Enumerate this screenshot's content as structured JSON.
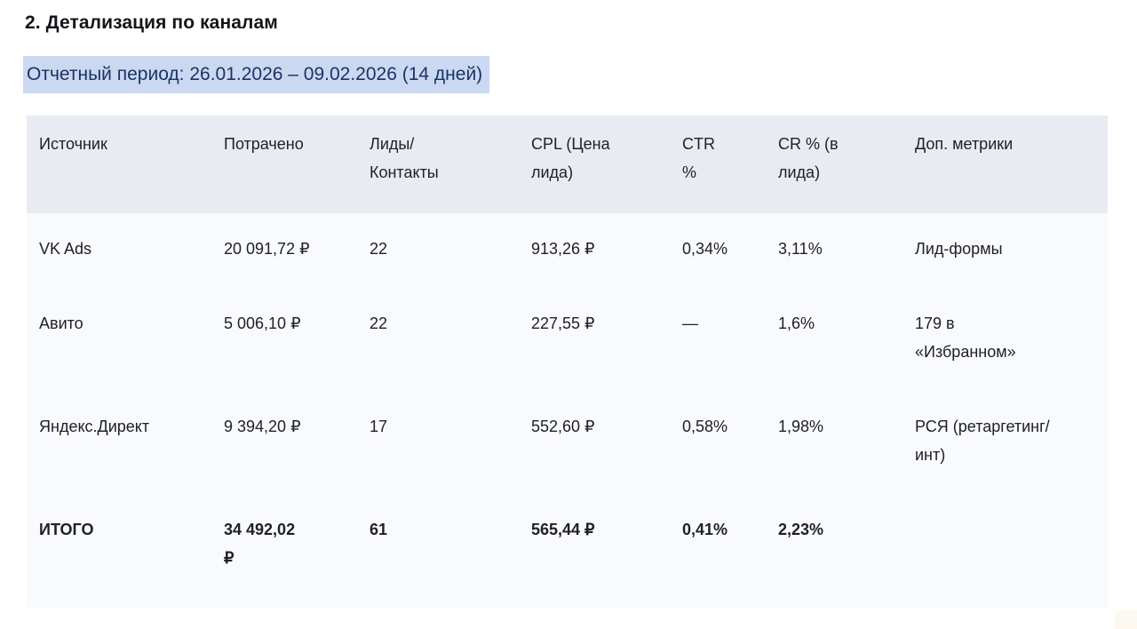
{
  "section": {
    "title": "2. Детализация по каналам",
    "period": "Отчетный период: 26.01.2026 – 09.02.2026 (14 дней)"
  },
  "table": {
    "headers": {
      "source": "Источник",
      "spent": "Потрачено",
      "leads": "Лиды/\nКонтакты",
      "cpl": "CPL (Цена\nлида)",
      "ctr": "CTR\n%",
      "cr": "CR % (в\nлида)",
      "extra": "Доп. метрики"
    },
    "rows": [
      {
        "source": "VK Ads",
        "spent": "20 091,72 ₽",
        "leads": "22",
        "cpl": "913,26 ₽",
        "ctr": "0,34%",
        "cr": "3,11%",
        "extra": "Лид-формы"
      },
      {
        "source": "Авито",
        "spent": "5 006,10 ₽",
        "leads": "22",
        "cpl": "227,55 ₽",
        "ctr": "—",
        "cr": "1,6%",
        "extra": "179 в\n«Избранном»"
      },
      {
        "source": "Яндекс.Директ",
        "spent": "9 394,20 ₽",
        "leads": "17",
        "cpl": "552,60 ₽",
        "ctr": "0,58%",
        "cr": "1,98%",
        "extra": "РСЯ (ретаргетинг/\nинт)"
      },
      {
        "source": "ИТОГО",
        "spent": "34 492,02\n₽",
        "leads": "61",
        "cpl": "565,44 ₽",
        "ctr": "0,41%",
        "cr": "2,23%",
        "extra": ""
      }
    ]
  },
  "colors": {
    "highlight_bg": "#cbd8f1",
    "highlight_text": "#1a3365",
    "table_header_bg": "#e9ebf2",
    "table_body_bg": "#f9fafd",
    "text": "#202124"
  }
}
